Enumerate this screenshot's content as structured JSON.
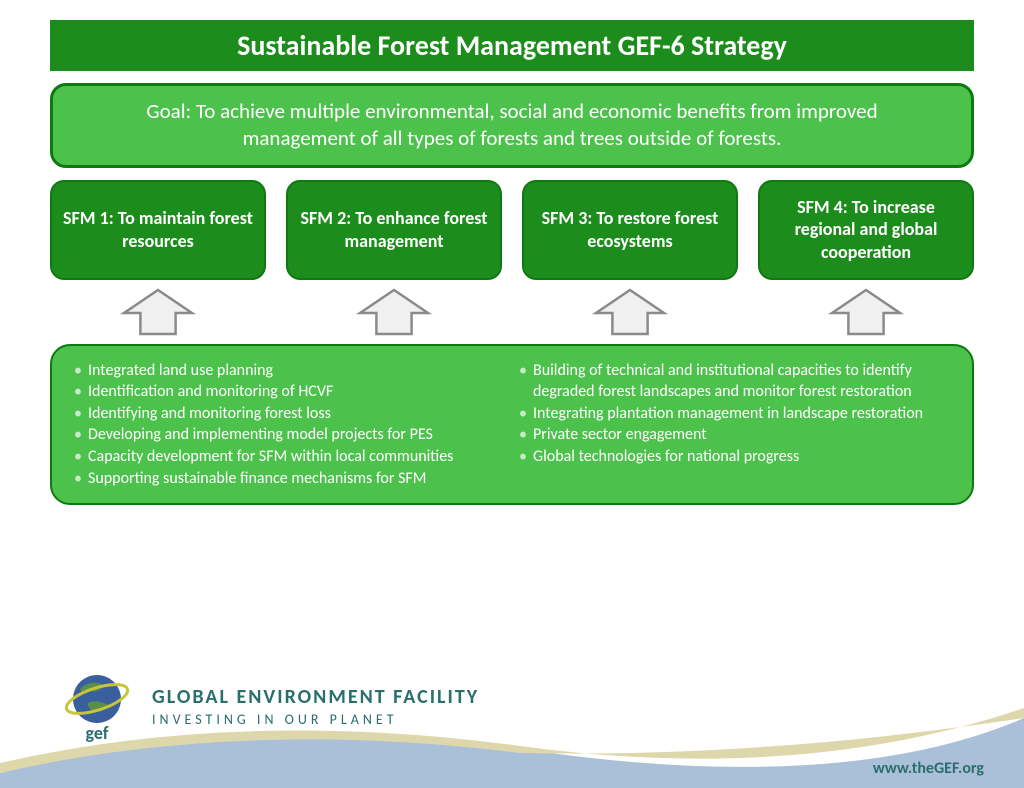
{
  "type": "infographic",
  "colors": {
    "dark_green": "#1c8c1c",
    "mid_green": "#4cc24c",
    "border_green": "#0e7a0e",
    "arrow_stroke": "#8a8a8a",
    "arrow_fill": "#f0f0f0",
    "footer_blue": "#a9c0d8",
    "footer_tan": "#ded7ac",
    "brand_teal": "#2a6e6e",
    "white": "#ffffff"
  },
  "title": {
    "text": "Sustainable Forest Management GEF-6 Strategy",
    "fontsize": 28,
    "color": "#ffffff",
    "bg": "#1c8c1c"
  },
  "goal": {
    "text": "Goal: To achieve multiple environmental, social and economic benefits from improved management of all types of forests and trees outside of forests.",
    "fontsize": 21,
    "color": "#ffffff",
    "bg": "#4cc24c",
    "border": "#0e7a0e",
    "border_width": 3
  },
  "sfm": {
    "bg": "#1c8c1c",
    "border": "#0e7a0e",
    "border_width": 2,
    "color": "#ffffff",
    "fontsize": 18,
    "items": [
      {
        "label": "SFM 1: To maintain forest resources"
      },
      {
        "label": "SFM 2: To enhance forest management"
      },
      {
        "label": "SFM 3: To restore forest ecosystems"
      },
      {
        "label": "SFM 4: To increase regional and global cooperation"
      }
    ]
  },
  "arrows": {
    "stroke": "#8a8a8a",
    "fill": "#f0f0f0",
    "width": 80,
    "height": 50
  },
  "details": {
    "bg": "#4cc24c",
    "border": "#0e7a0e",
    "border_width": 2,
    "color": "#ffffff",
    "bullet_color": "#c7eac7",
    "fontsize": 16,
    "left": [
      "Integrated land use planning",
      "Identification and monitoring of HCVF",
      "Identifying and monitoring forest loss",
      "Developing and implementing model projects for PES",
      "Capacity development for SFM within local communities",
      "Supporting sustainable finance mechanisms for SFM"
    ],
    "right": [
      "Building of technical and institutional capacities to identify degraded forest landscapes and monitor forest restoration",
      "Integrating plantation management in landscape restoration",
      "Private sector engagement",
      "Global technologies for national progress"
    ]
  },
  "brand": {
    "acronym": "gef",
    "line1": "GLOBAL ENVIRONMENT FACILITY",
    "line2": "INVESTING IN OUR PLANET",
    "color": "#2a6e6e",
    "line1_fontsize": 20,
    "line2_fontsize": 14,
    "url": "www.theGEF.org",
    "globe_land": "#5a8f4a",
    "globe_ocean": "#3a5f9f",
    "ring": "#c9c43a"
  }
}
